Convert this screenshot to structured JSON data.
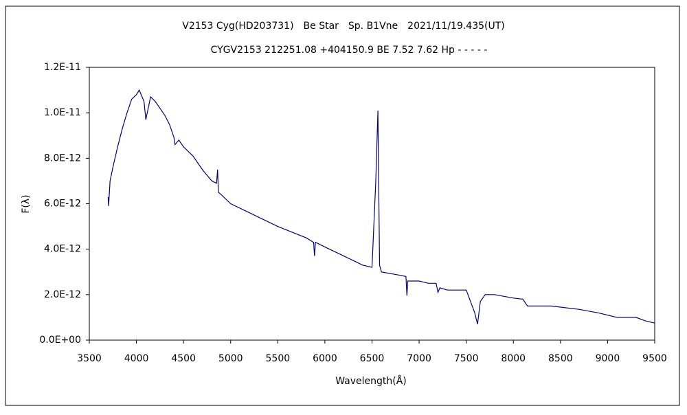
{
  "chart_data": {
    "type": "line",
    "title": "V2153 Cyg(HD203731)　Be Star　Sp. B1Vne　2021/11/19.435(UT)",
    "subtitle": "CYGV2153 212251.08 +404150.9 BE 7.52 7.62 Hp - - - - -",
    "xlabel": "Wavelength(Å)",
    "ylabel": "F(λ)",
    "color": "#000080",
    "x": [
      3700,
      3705,
      3720,
      3750,
      3800,
      3850,
      3900,
      3950,
      4000,
      4030,
      4080,
      4100,
      4150,
      4200,
      4300,
      4350,
      4400,
      4410,
      4450,
      4500,
      4600,
      4700,
      4800,
      4850,
      4861,
      4870,
      4900,
      5000,
      5200,
      5500,
      5800,
      5880,
      5890,
      5900,
      6000,
      6200,
      6300,
      6400,
      6500,
      6540,
      6563,
      6580,
      6600,
      6800,
      6860,
      6870,
      6880,
      6900,
      7000,
      7100,
      7180,
      7200,
      7220,
      7300,
      7500,
      7590,
      7620,
      7650,
      7700,
      7800,
      8000,
      8100,
      8150,
      8200,
      8400,
      8500,
      8700,
      8900,
      9100,
      9300,
      9400,
      9500
    ],
    "values": [
      6.3e-12,
      5.9e-12,
      7e-12,
      7.6e-12,
      8.5e-12,
      9.3e-12,
      1e-11,
      1.06e-11,
      1.08e-11,
      1.1e-11,
      1.05e-11,
      9.7e-12,
      1.07e-11,
      1.05e-11,
      9.9e-12,
      9.5e-12,
      8.9e-12,
      8.6e-12,
      8.8e-12,
      8.5e-12,
      8.1e-12,
      7.5e-12,
      7e-12,
      6.9e-12,
      7.5e-12,
      6.5e-12,
      6.4e-12,
      6e-12,
      5.6e-12,
      5e-12,
      4.5e-12,
      4.3e-12,
      3.7e-12,
      4.3e-12,
      4.1e-12,
      3.7e-12,
      3.5e-12,
      3.3e-12,
      3.2e-12,
      7e-12,
      1.01e-11,
      3.3e-12,
      3e-12,
      2.85e-12,
      2.8e-12,
      1.96e-12,
      2.6e-12,
      2.6e-12,
      2.6e-12,
      2.5e-12,
      2.5e-12,
      2.1e-12,
      2.3e-12,
      2.2e-12,
      2.2e-12,
      1.2e-12,
      7e-13,
      1.7e-12,
      2e-12,
      2e-12,
      1.85e-12,
      1.8e-12,
      1.5e-12,
      1.5e-12,
      1.5e-12,
      1.45e-12,
      1.35e-12,
      1.2e-12,
      1e-12,
      1e-12,
      8.5e-13,
      7.5e-13
    ],
    "xlim": [
      3500,
      9500
    ],
    "xticks": [
      3500,
      4000,
      4500,
      5000,
      5500,
      6000,
      6500,
      7000,
      7500,
      8000,
      8500,
      9000,
      9500
    ],
    "ylim": [
      0,
      1.2e-11
    ],
    "yticks": [
      {
        "value": 0,
        "label": "0.0E+00"
      },
      {
        "value": 2e-12,
        "label": "2.0E-12"
      },
      {
        "value": 4e-12,
        "label": "4.0E-12"
      },
      {
        "value": 6e-12,
        "label": "6.0E-12"
      },
      {
        "value": 8e-12,
        "label": "8.0E-12"
      },
      {
        "value": 1e-11,
        "label": "1.0E-11"
      },
      {
        "value": 1.2e-11,
        "label": "1.2E-11"
      }
    ]
  }
}
